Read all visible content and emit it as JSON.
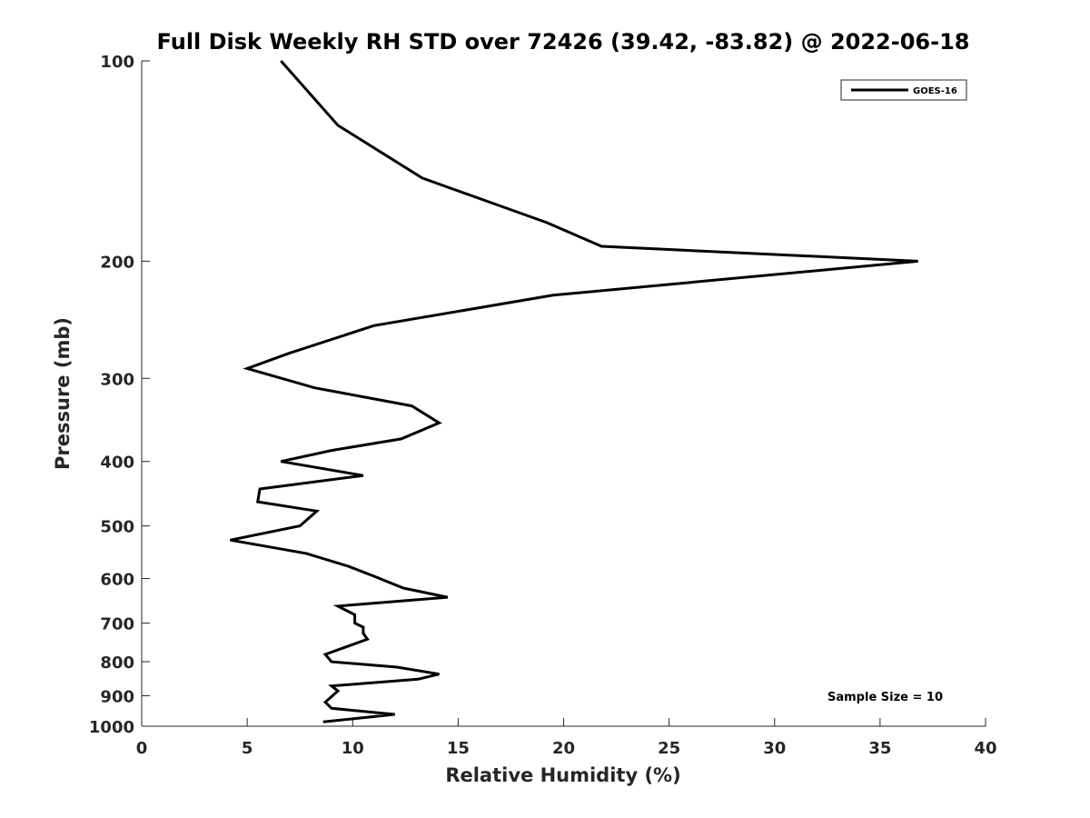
{
  "chart_data": {
    "type": "line",
    "title": "Full Disk Weekly RH STD over 72426 (39.42, -83.82) @ 2022-06-18",
    "xlabel": "Relative Humidity (%)",
    "ylabel": "Pressure (mb)",
    "xlim": [
      0,
      40
    ],
    "ylim": [
      100,
      1000
    ],
    "y_scale": "log",
    "y_reversed": true,
    "grid": false,
    "legend_position": "top-right",
    "x_ticks": [
      "0",
      "5",
      "10",
      "15",
      "20",
      "25",
      "30",
      "35",
      "40"
    ],
    "y_ticks": [
      "100",
      "200",
      "300",
      "400",
      "500",
      "600",
      "700",
      "800",
      "900",
      "1000"
    ],
    "annotation": "Sample Size = 10",
    "series": [
      {
        "name": "GOES-16",
        "color": "#000000",
        "points": [
          [
            6.6,
            100
          ],
          [
            9.3,
            125
          ],
          [
            13.3,
            150
          ],
          [
            19.2,
            175
          ],
          [
            21.8,
            190
          ],
          [
            36.8,
            200
          ],
          [
            19.5,
            225
          ],
          [
            11.0,
            250
          ],
          [
            7.0,
            275
          ],
          [
            5.0,
            290
          ],
          [
            8.2,
            310
          ],
          [
            12.8,
            330
          ],
          [
            14.1,
            350
          ],
          [
            12.3,
            370
          ],
          [
            9.0,
            385
          ],
          [
            6.6,
            400
          ],
          [
            10.5,
            420
          ],
          [
            5.6,
            440
          ],
          [
            5.5,
            460
          ],
          [
            8.3,
            475
          ],
          [
            7.5,
            500
          ],
          [
            4.2,
            525
          ],
          [
            7.8,
            550
          ],
          [
            9.8,
            575
          ],
          [
            11.0,
            595
          ],
          [
            12.4,
            620
          ],
          [
            14.5,
            640
          ],
          [
            9.3,
            660
          ],
          [
            10.1,
            680
          ],
          [
            10.1,
            700
          ],
          [
            10.5,
            710
          ],
          [
            10.5,
            725
          ],
          [
            10.7,
            740
          ],
          [
            8.7,
            780
          ],
          [
            9.0,
            800
          ],
          [
            12.1,
            815
          ],
          [
            14.1,
            835
          ],
          [
            13.1,
            850
          ],
          [
            9.0,
            870
          ],
          [
            9.3,
            885
          ],
          [
            8.7,
            920
          ],
          [
            9.0,
            940
          ],
          [
            12.0,
            960
          ],
          [
            8.6,
            985
          ]
        ]
      }
    ]
  }
}
